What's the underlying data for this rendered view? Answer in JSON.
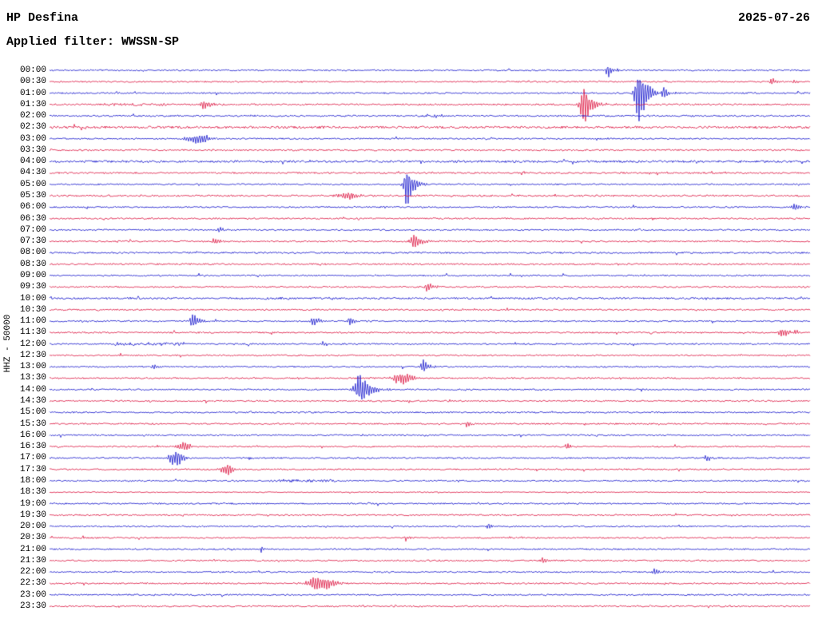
{
  "chart_data": {
    "type": "line",
    "subtype": "helicorder-dayplot",
    "station": "HP Desfina",
    "date": "2025-07-26",
    "filter": "Applied filter: WWSSN-SP",
    "ylabel": "HHZ - 50000",
    "minutes_per_row": 30,
    "x_range_per_row_minutes": [
      0,
      30
    ],
    "grid": false,
    "legend": "none",
    "colors": {
      "blue": "#1414cc",
      "red": "#dc1440"
    },
    "rows": [
      {
        "time": "00:00",
        "color": "blue",
        "noise": 0.9,
        "events": [
          [
            0.735,
            9,
            4
          ]
        ]
      },
      {
        "time": "00:30",
        "color": "red",
        "noise": 0.9,
        "events": [
          [
            0.949,
            6,
            4
          ],
          [
            0.98,
            3,
            3
          ]
        ]
      },
      {
        "time": "01:00",
        "color": "blue",
        "noise": 0.9,
        "events": [
          [
            0.775,
            42,
            6
          ],
          [
            0.807,
            10,
            4
          ]
        ]
      },
      {
        "time": "01:30",
        "color": "red",
        "noise": 1.0,
        "events": [
          [
            0.203,
            8,
            5
          ],
          [
            0.703,
            27,
            6
          ]
        ],
        "segments": [
          [
            0.07,
            0.16,
            1.0
          ]
        ]
      },
      {
        "time": "02:00",
        "color": "blue",
        "noise": 1.0,
        "events": [
          [
            0.507,
            3,
            3
          ]
        ]
      },
      {
        "time": "02:30",
        "color": "red",
        "noise": 1.4
      },
      {
        "time": "03:00",
        "color": "blue",
        "noise": 0.9,
        "events": [
          [
            0.196,
            6,
            12,
            "g"
          ]
        ]
      },
      {
        "time": "03:30",
        "color": "red",
        "noise": 1.0
      },
      {
        "time": "04:00",
        "color": "blue",
        "noise": 1.3
      },
      {
        "time": "04:30",
        "color": "red",
        "noise": 1.0
      },
      {
        "time": "05:00",
        "color": "blue",
        "noise": 0.9,
        "events": [
          [
            0.47,
            30,
            5
          ]
        ]
      },
      {
        "time": "05:30",
        "color": "red",
        "noise": 1.1,
        "events": [
          [
            0.394,
            5,
            10,
            "g"
          ]
        ]
      },
      {
        "time": "06:00",
        "color": "blue",
        "noise": 0.9,
        "events": [
          [
            0.98,
            6,
            4
          ]
        ]
      },
      {
        "time": "06:30",
        "color": "red",
        "noise": 0.9
      },
      {
        "time": "07:00",
        "color": "blue",
        "noise": 0.9,
        "events": [
          [
            0.224,
            5,
            3
          ]
        ]
      },
      {
        "time": "07:30",
        "color": "red",
        "noise": 0.9,
        "events": [
          [
            0.218,
            6,
            4
          ],
          [
            0.479,
            11,
            5
          ]
        ]
      },
      {
        "time": "08:00",
        "color": "blue",
        "noise": 1.0
      },
      {
        "time": "08:30",
        "color": "red",
        "noise": 1.0
      },
      {
        "time": "09:00",
        "color": "blue",
        "noise": 0.9
      },
      {
        "time": "09:30",
        "color": "red",
        "noise": 0.9,
        "events": [
          [
            0.497,
            8,
            4
          ]
        ]
      },
      {
        "time": "10:00",
        "color": "blue",
        "noise": 1.1,
        "segments": [
          [
            0.28,
            0.4,
            0.8
          ]
        ]
      },
      {
        "time": "10:30",
        "color": "red",
        "noise": 0.9
      },
      {
        "time": "11:00",
        "color": "blue",
        "noise": 0.9,
        "events": [
          [
            0.188,
            13,
            4
          ],
          [
            0.347,
            9,
            4
          ],
          [
            0.395,
            8,
            3
          ]
        ]
      },
      {
        "time": "11:30",
        "color": "red",
        "noise": 0.9,
        "events": [
          [
            0.964,
            7,
            5
          ]
        ]
      },
      {
        "time": "12:00",
        "color": "blue",
        "noise": 0.9,
        "events": [
          [
            0.36,
            4,
            3
          ]
        ],
        "segments": [
          [
            0.08,
            0.18,
            1.5
          ]
        ]
      },
      {
        "time": "12:30",
        "color": "red",
        "noise": 0.9
      },
      {
        "time": "13:00",
        "color": "blue",
        "noise": 0.9,
        "events": [
          [
            0.137,
            4,
            3
          ],
          [
            0.492,
            10,
            4
          ]
        ]
      },
      {
        "time": "13:30",
        "color": "red",
        "noise": 0.9,
        "events": [
          [
            0.465,
            9,
            9,
            "g"
          ]
        ]
      },
      {
        "time": "14:00",
        "color": "blue",
        "noise": 0.9,
        "events": [
          [
            0.408,
            20,
            8
          ]
        ]
      },
      {
        "time": "14:30",
        "color": "red",
        "noise": 0.9
      },
      {
        "time": "15:00",
        "color": "blue",
        "noise": 0.9
      },
      {
        "time": "15:30",
        "color": "red",
        "noise": 0.9,
        "events": [
          [
            0.549,
            5,
            3
          ]
        ]
      },
      {
        "time": "16:00",
        "color": "blue",
        "noise": 0.9
      },
      {
        "time": "16:30",
        "color": "red",
        "noise": 0.9,
        "events": [
          [
            0.176,
            5,
            7,
            "g"
          ],
          [
            0.681,
            6,
            3
          ]
        ]
      },
      {
        "time": "17:00",
        "color": "blue",
        "noise": 0.9,
        "events": [
          [
            0.166,
            11,
            7,
            "g"
          ],
          [
            0.864,
            6,
            3
          ]
        ]
      },
      {
        "time": "17:30",
        "color": "red",
        "noise": 0.9,
        "events": [
          [
            0.234,
            8,
            6,
            "g"
          ]
        ]
      },
      {
        "time": "18:00",
        "color": "blue",
        "noise": 0.9,
        "segments": [
          [
            0.29,
            0.38,
            1.3
          ]
        ]
      },
      {
        "time": "18:30",
        "color": "red",
        "noise": 0.6
      },
      {
        "time": "19:00",
        "color": "blue",
        "noise": 0.9
      },
      {
        "time": "19:30",
        "color": "red",
        "noise": 0.9
      },
      {
        "time": "20:00",
        "color": "blue",
        "noise": 0.9,
        "events": [
          [
            0.578,
            4,
            3
          ]
        ]
      },
      {
        "time": "20:30",
        "color": "red",
        "noise": 0.9,
        "events": [
          [
            0.468,
            4,
            3
          ]
        ]
      },
      {
        "time": "21:00",
        "color": "blue",
        "noise": 0.9,
        "events": [
          [
            0.279,
            5,
            3
          ]
        ]
      },
      {
        "time": "21:30",
        "color": "red",
        "noise": 0.9,
        "events": [
          [
            0.649,
            5,
            3
          ]
        ]
      },
      {
        "time": "22:00",
        "color": "blue",
        "noise": 0.9,
        "events": [
          [
            0.796,
            4,
            4
          ]
        ]
      },
      {
        "time": "22:30",
        "color": "red",
        "noise": 0.9,
        "events": [
          [
            0.358,
            11,
            12,
            "g"
          ]
        ]
      },
      {
        "time": "23:00",
        "color": "blue",
        "noise": 0.9
      },
      {
        "time": "23:30",
        "color": "red",
        "noise": 0.9
      }
    ]
  }
}
